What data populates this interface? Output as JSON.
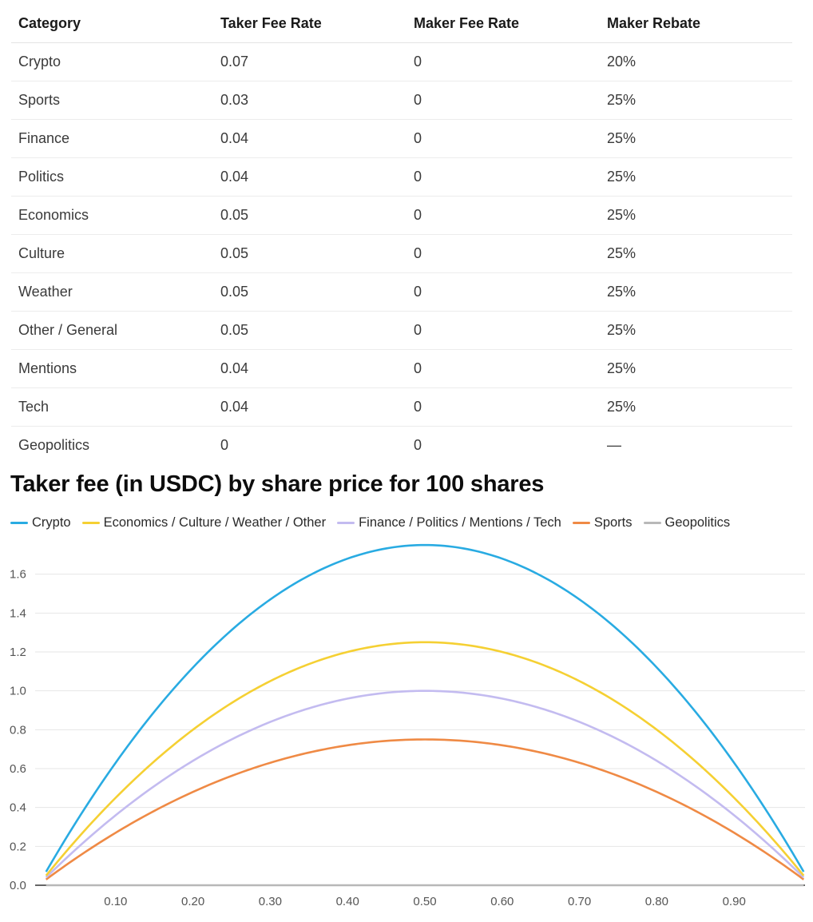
{
  "table": {
    "headers": [
      "Category",
      "Taker Fee Rate",
      "Maker Fee Rate",
      "Maker Rebate"
    ],
    "rows": [
      [
        "Crypto",
        "0.07",
        "0",
        "20%"
      ],
      [
        "Sports",
        "0.03",
        "0",
        "25%"
      ],
      [
        "Finance",
        "0.04",
        "0",
        "25%"
      ],
      [
        "Politics",
        "0.04",
        "0",
        "25%"
      ],
      [
        "Economics",
        "0.05",
        "0",
        "25%"
      ],
      [
        "Culture",
        "0.05",
        "0",
        "25%"
      ],
      [
        "Weather",
        "0.05",
        "0",
        "25%"
      ],
      [
        "Other / General",
        "0.05",
        "0",
        "25%"
      ],
      [
        "Mentions",
        "0.04",
        "0",
        "25%"
      ],
      [
        "Tech",
        "0.04",
        "0",
        "25%"
      ],
      [
        "Geopolitics",
        "0",
        "0",
        "—"
      ]
    ]
  },
  "chart_data": {
    "type": "line",
    "title": "Taker fee (in USDC) by share price for 100 shares",
    "xlabel": "",
    "ylabel": "",
    "xlim": [
      0.01,
      0.99
    ],
    "ylim": [
      0,
      1.75
    ],
    "x_ticks": [
      "0.10",
      "0.20",
      "0.30",
      "0.40",
      "0.50",
      "0.60",
      "0.70",
      "0.80",
      "0.90"
    ],
    "y_ticks": [
      "0.0",
      "0.2",
      "0.4",
      "0.6",
      "0.8",
      "1.0",
      "1.2",
      "1.4",
      "1.6"
    ],
    "grid": true,
    "legend_position": "top-left",
    "series": [
      {
        "name": "Crypto",
        "color": "#29abe2",
        "x": [
          0.01,
          0.1,
          0.2,
          0.3,
          0.4,
          0.5,
          0.6,
          0.7,
          0.8,
          0.9,
          0.99
        ],
        "values": [
          0.0693,
          0.63,
          1.12,
          1.47,
          1.68,
          1.75,
          1.68,
          1.47,
          1.12,
          0.63,
          0.0693
        ]
      },
      {
        "name": "Economics / Culture / Weather / Other",
        "color": "#f5d033",
        "x": [
          0.01,
          0.1,
          0.2,
          0.3,
          0.4,
          0.5,
          0.6,
          0.7,
          0.8,
          0.9,
          0.99
        ],
        "values": [
          0.0495,
          0.45,
          0.8,
          1.05,
          1.2,
          1.25,
          1.2,
          1.05,
          0.8,
          0.45,
          0.0495
        ]
      },
      {
        "name": "Finance / Politics / Mentions / Tech",
        "color": "#c3bbf0",
        "x": [
          0.01,
          0.1,
          0.2,
          0.3,
          0.4,
          0.5,
          0.6,
          0.7,
          0.8,
          0.9,
          0.99
        ],
        "values": [
          0.0396,
          0.36,
          0.64,
          0.84,
          0.96,
          1.0,
          0.96,
          0.84,
          0.64,
          0.36,
          0.0396
        ]
      },
      {
        "name": "Sports",
        "color": "#ef8a45",
        "x": [
          0.01,
          0.1,
          0.2,
          0.3,
          0.4,
          0.5,
          0.6,
          0.7,
          0.8,
          0.9,
          0.99
        ],
        "values": [
          0.0297,
          0.27,
          0.48,
          0.63,
          0.72,
          0.75,
          0.72,
          0.63,
          0.48,
          0.27,
          0.0297
        ]
      },
      {
        "name": "Geopolitics",
        "color": "#b8b8b8",
        "x": [
          0.01,
          0.1,
          0.2,
          0.3,
          0.4,
          0.5,
          0.6,
          0.7,
          0.8,
          0.9,
          0.99
        ],
        "values": [
          0,
          0,
          0,
          0,
          0,
          0,
          0,
          0,
          0,
          0,
          0
        ]
      }
    ]
  }
}
